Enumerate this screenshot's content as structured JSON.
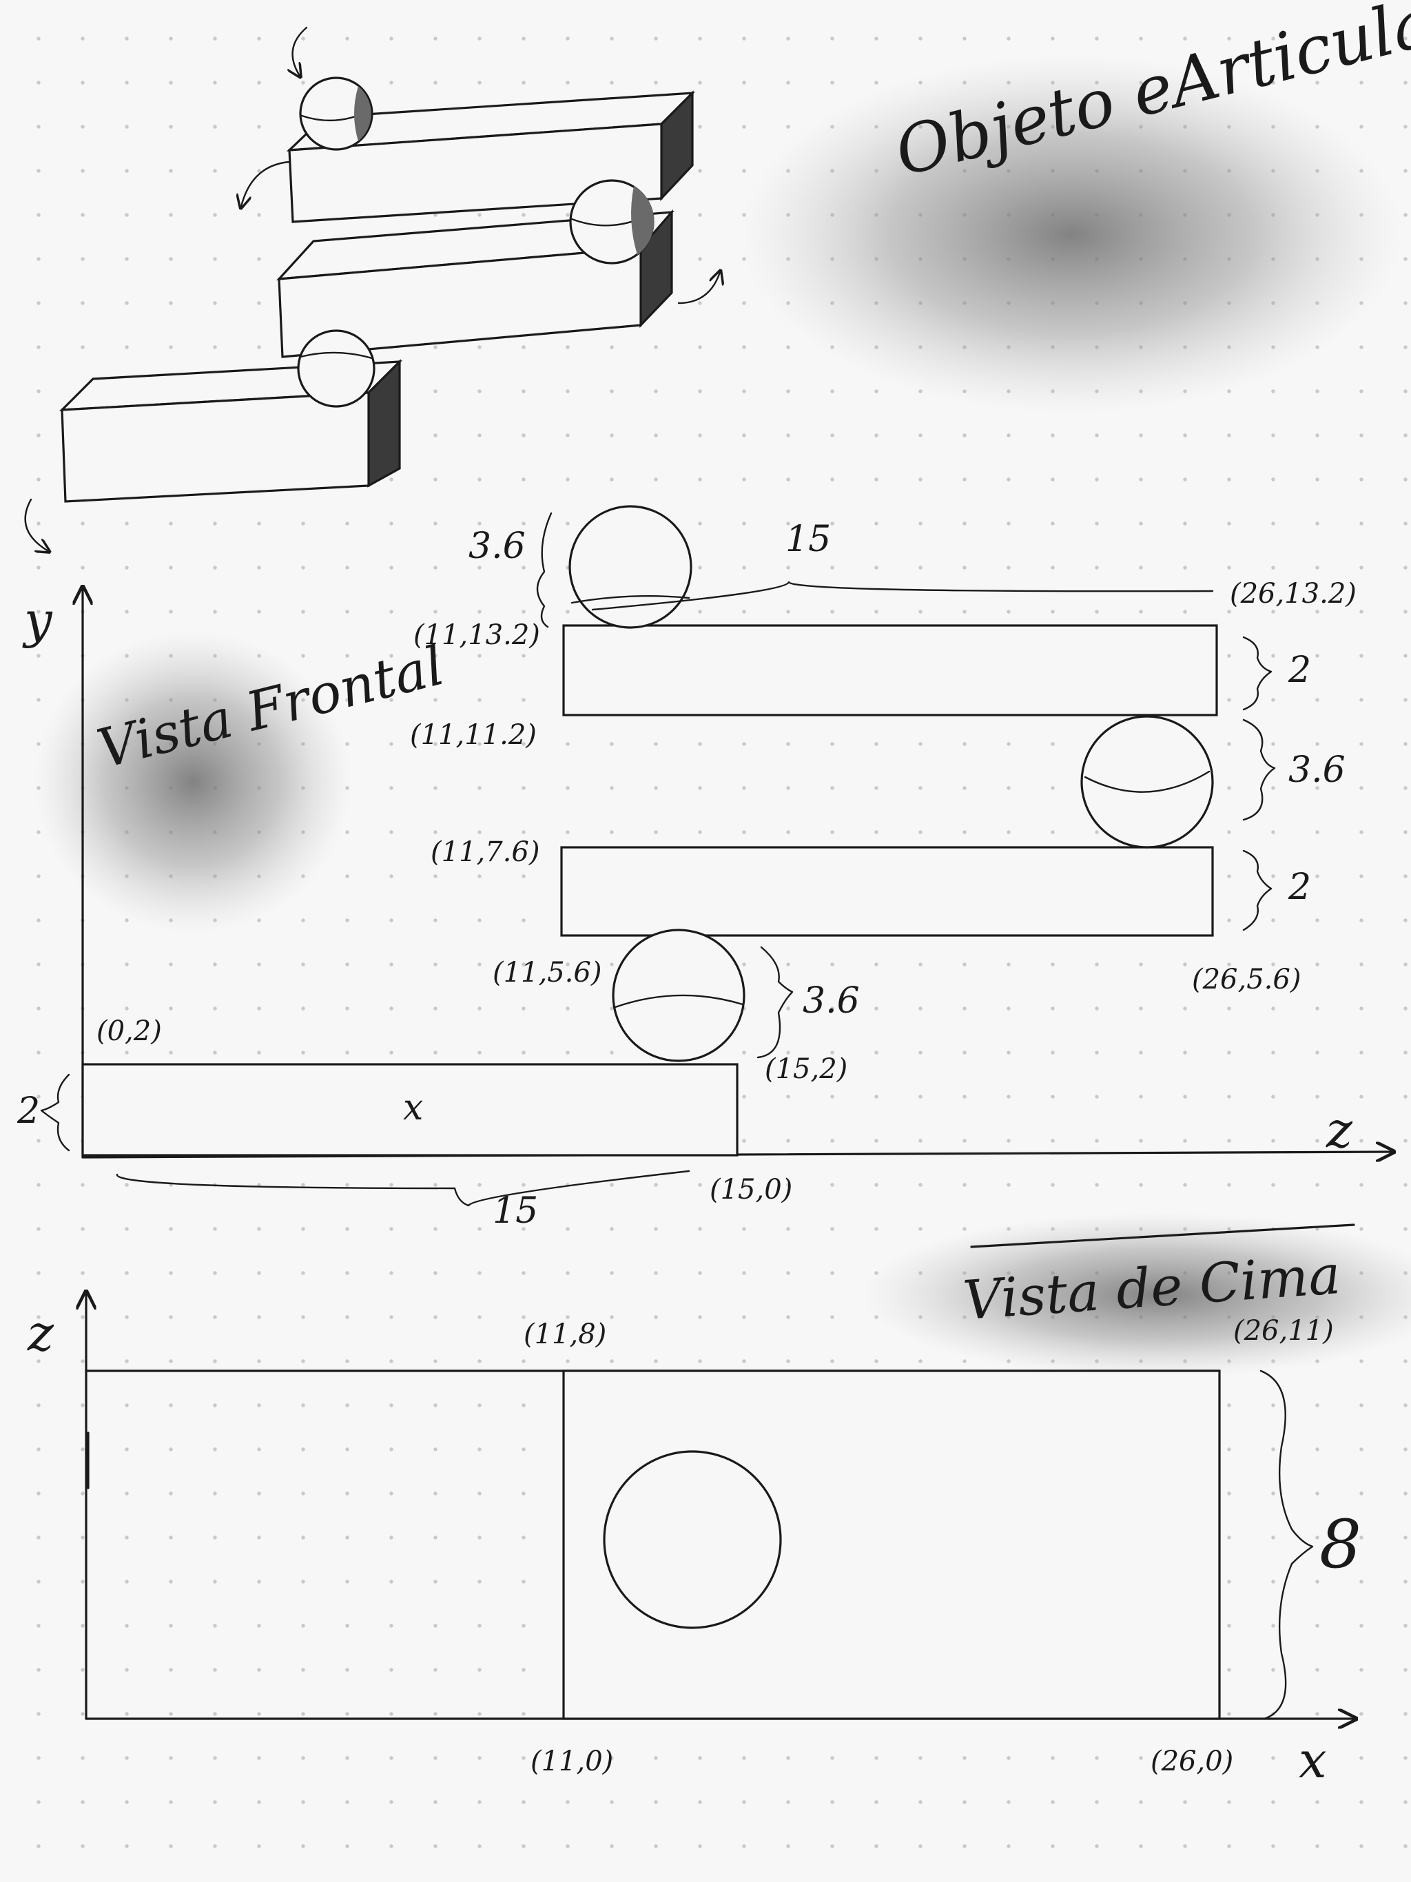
{
  "title": "Objeto eArticulado",
  "front_view": {
    "title": "Vista Frontal",
    "axis_y": "y",
    "axis_z": "z",
    "points": [
      "(11,13.2)",
      "(26,13.2)",
      "(11,11.2)",
      "(11,7.6)",
      "(11,5.6)",
      "(26,5.6)",
      "(0,2)",
      "(15,2)",
      "(15,0)"
    ],
    "dims": [
      "3.6",
      "15",
      "2",
      "3.6",
      "2",
      "3.6",
      "2",
      "15"
    ],
    "center_mark": "x"
  },
  "top_view": {
    "title": "Vista de Cima",
    "axis_z": "z",
    "axis_x": "x",
    "points": [
      "(11,8)",
      "(26,11)",
      "(11,0)",
      "(26,0)"
    ],
    "dims": [
      "8"
    ]
  }
}
